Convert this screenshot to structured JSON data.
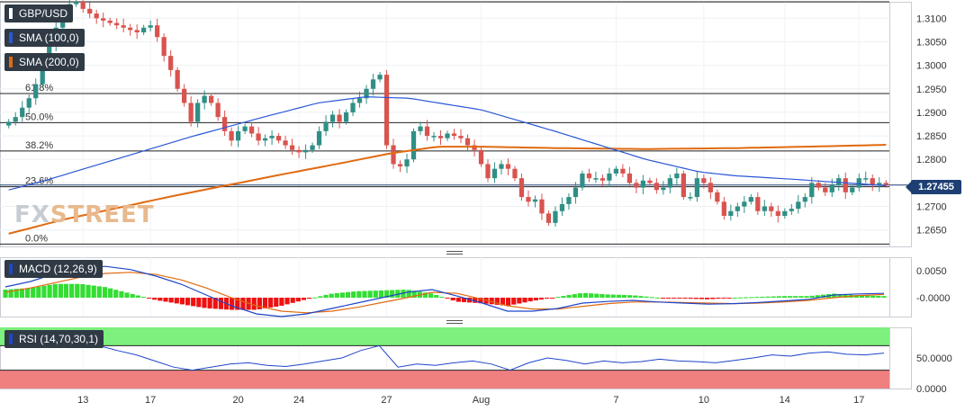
{
  "instrument": "GBP/USD",
  "legend": {
    "sma100": "SMA (100,0)",
    "sma200": "SMA (200,0)",
    "macd": "MACD (12,26,9)",
    "rsi": "RSI (14,70,30,1)"
  },
  "logo": {
    "text_a": "FX",
    "text_b": "STREET"
  },
  "current_price": "1.27455",
  "colors": {
    "bull": "#2f8f86",
    "bear": "#d9534f",
    "sma100": "#2a57d6",
    "sma200": "#e06a10",
    "macd_line": "#1f45c9",
    "signal_line": "#e06a10",
    "hist_pos": "#33dd33",
    "hist_neg": "#ee1111",
    "rsi_line": "#1f45c9",
    "overbought": "#7df07d",
    "oversold": "#f08080",
    "price_tag": "#1e3f73"
  },
  "chart_data": [
    {
      "type": "candlestick",
      "title": "GBP/USD",
      "ylim": [
        1.2615,
        1.3135
      ],
      "y_ticks": [
        "1.3100",
        "1.3050",
        "1.3000",
        "1.2950",
        "1.2900",
        "1.2850",
        "1.2800",
        "1.2750",
        "1.2700",
        "1.2650"
      ],
      "x_ticks": [
        "13",
        "17",
        "20",
        "24",
        "27",
        "Aug",
        "7",
        "10",
        "14",
        "17"
      ],
      "fibonacci_levels": [
        {
          "label": "61.8%",
          "value": 1.294
        },
        {
          "label": "50.0%",
          "value": 1.2878
        },
        {
          "label": "38.2%",
          "value": 1.2818
        },
        {
          "label": "23.6%",
          "value": 1.2742
        },
        {
          "label": "0.0%",
          "value": 1.262
        }
      ],
      "support_line": 1.3135,
      "last_price": 1.27455,
      "close": [
        1.288,
        1.289,
        1.291,
        1.293,
        1.296,
        1.3,
        1.304,
        1.308,
        1.311,
        1.313,
        1.3135,
        1.312,
        1.311,
        1.31,
        1.3095,
        1.309,
        1.3085,
        1.308,
        1.3075,
        1.307,
        1.308,
        1.3085,
        1.306,
        1.302,
        1.299,
        1.295,
        1.292,
        1.288,
        1.292,
        1.2935,
        1.292,
        1.289,
        1.286,
        1.284,
        1.286,
        1.287,
        1.2855,
        1.284,
        1.2845,
        1.285,
        1.284,
        1.283,
        1.282,
        1.2815,
        1.282,
        1.283,
        1.286,
        1.288,
        1.2895,
        1.288,
        1.29,
        1.292,
        1.293,
        1.295,
        1.297,
        1.298,
        1.283,
        1.279,
        1.2785,
        1.28,
        1.286,
        1.287,
        1.285,
        1.285,
        1.2845,
        1.2855,
        1.285,
        1.2845,
        1.283,
        1.282,
        1.279,
        1.276,
        1.278,
        1.279,
        1.278,
        1.276,
        1.272,
        1.271,
        1.2715,
        1.2685,
        1.2665,
        1.269,
        1.2705,
        1.272,
        1.274,
        1.277,
        1.276,
        1.276,
        1.2755,
        1.277,
        1.278,
        1.277,
        1.275,
        1.274,
        1.2755,
        1.275,
        1.2735,
        1.274,
        1.276,
        1.277,
        1.272,
        1.272,
        1.276,
        1.275,
        1.273,
        1.271,
        1.268,
        1.269,
        1.27,
        1.271,
        1.272,
        1.269,
        1.27,
        1.269,
        1.268,
        1.269,
        1.2695,
        1.271,
        1.272,
        1.275,
        1.274,
        1.273,
        1.2745,
        1.276,
        1.273,
        1.274,
        1.276,
        1.276,
        1.2745,
        1.275,
        1.27455
      ],
      "sma100": [
        [
          0,
          1.2735
        ],
        [
          10,
          1.2755
        ],
        [
          25,
          1.279
        ],
        [
          50,
          1.2848
        ],
        [
          70,
          1.289
        ],
        [
          85,
          1.292
        ],
        [
          98,
          1.2933
        ],
        [
          110,
          1.293
        ],
        [
          130,
          1.2905
        ],
        [
          150,
          1.286
        ],
        [
          175,
          1.28
        ],
        [
          190,
          1.2773
        ],
        [
          200,
          1.2765
        ],
        [
          215,
          1.2758
        ],
        [
          230,
          1.275
        ],
        [
          241,
          1.2744
        ]
      ],
      "sma200": [
        [
          0,
          1.2642
        ],
        [
          15,
          1.2672
        ],
        [
          30,
          1.2697
        ],
        [
          45,
          1.2722
        ],
        [
          60,
          1.2745
        ],
        [
          75,
          1.2768
        ],
        [
          90,
          1.279
        ],
        [
          105,
          1.2813
        ],
        [
          118,
          1.2827
        ],
        [
          130,
          1.2827
        ],
        [
          150,
          1.2824
        ],
        [
          175,
          1.2822
        ],
        [
          200,
          1.2824
        ],
        [
          225,
          1.2828
        ],
        [
          241,
          1.2831
        ]
      ]
    },
    {
      "type": "bar",
      "title": "MACD (12,26,9)",
      "ylim": [
        -0.0035,
        0.0075
      ],
      "y_ticks": [
        "0.0050",
        "-0.0000"
      ],
      "macd": [
        0.002,
        0.003,
        0.0045,
        0.0055,
        0.0058,
        0.0052,
        0.004,
        0.0025,
        0.0005,
        -0.0015,
        -0.003,
        -0.0035,
        -0.003,
        -0.002,
        -0.001,
        0.0,
        0.001,
        0.0015,
        0.0003,
        -0.001,
        -0.0025,
        -0.0025,
        -0.002,
        -0.001,
        -0.0007,
        -0.0005,
        -0.0008,
        -0.001,
        -0.0012,
        -0.0011,
        -0.0009,
        -0.0006,
        -0.0003,
        0.0005,
        0.0007,
        0.0008
      ],
      "signal": [
        0.001,
        0.0018,
        0.0028,
        0.0038,
        0.0045,
        0.0047,
        0.0043,
        0.0033,
        0.0018,
        0.0,
        -0.0015,
        -0.0025,
        -0.0028,
        -0.0025,
        -0.0018,
        -0.0009,
        0.0,
        0.001,
        0.0008,
        -0.0003,
        -0.0015,
        -0.0021,
        -0.0021,
        -0.0016,
        -0.0011,
        -0.0008,
        -0.0008,
        -0.0009,
        -0.001,
        -0.0011,
        -0.001,
        -0.0008,
        -0.0005,
        0.0,
        0.0004,
        0.0006
      ]
    },
    {
      "type": "line",
      "title": "RSI (14,70,30,1)",
      "ylim": [
        0,
        100
      ],
      "y_ticks": [
        "50.0000",
        "0.0000"
      ],
      "overbought": 70,
      "oversold": 30,
      "values": [
        88,
        85,
        82,
        80,
        78,
        70,
        62,
        55,
        45,
        35,
        30,
        35,
        40,
        42,
        38,
        36,
        40,
        45,
        50,
        62,
        70,
        35,
        40,
        38,
        42,
        45,
        40,
        30,
        42,
        50,
        46,
        40,
        45,
        42,
        44,
        48,
        45,
        44,
        42,
        46,
        50,
        55,
        53,
        58,
        60,
        56,
        55,
        58
      ]
    }
  ]
}
